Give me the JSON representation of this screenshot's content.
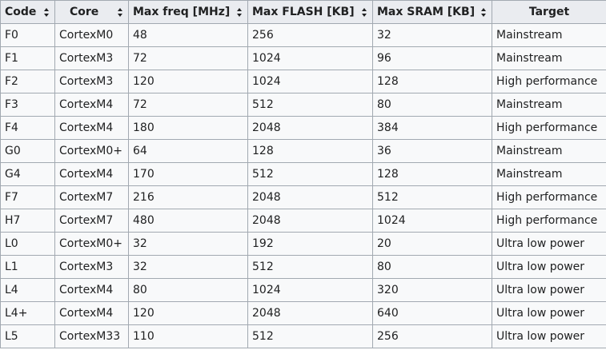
{
  "table": {
    "headers": [
      {
        "label": "Code",
        "sortable": true
      },
      {
        "label": "Core",
        "sortable": true
      },
      {
        "label": "Max freq [MHz]",
        "sortable": true
      },
      {
        "label": "Max FLASH [KB]",
        "sortable": true
      },
      {
        "label": "Max SRAM [KB]",
        "sortable": true
      },
      {
        "label": "Target",
        "sortable": false
      }
    ],
    "sort_icon": "sort-updown-icon",
    "rows": [
      [
        "F0",
        "CortexM0",
        "48",
        "256",
        "32",
        "Mainstream"
      ],
      [
        "F1",
        "CortexM3",
        "72",
        "1024",
        "96",
        "Mainstream"
      ],
      [
        "F2",
        "CortexM3",
        "120",
        "1024",
        "128",
        "High performance"
      ],
      [
        "F3",
        "CortexM4",
        "72",
        "512",
        "80",
        "Mainstream"
      ],
      [
        "F4",
        "CortexM4",
        "180",
        "2048",
        "384",
        "High performance"
      ],
      [
        "G0",
        "CortexM0+",
        "64",
        "128",
        "36",
        "Mainstream"
      ],
      [
        "G4",
        "CortexM4",
        "170",
        "512",
        "128",
        "Mainstream"
      ],
      [
        "F7",
        "CortexM7",
        "216",
        "2048",
        "512",
        "High performance"
      ],
      [
        "H7",
        "CortexM7",
        "480",
        "2048",
        "1024",
        "High performance"
      ],
      [
        "L0",
        "CortexM0+",
        "32",
        "192",
        "20",
        "Ultra low power"
      ],
      [
        "L1",
        "CortexM3",
        "32",
        "512",
        "80",
        "Ultra low power"
      ],
      [
        "L4",
        "CortexM4",
        "80",
        "1024",
        "320",
        "Ultra low power"
      ],
      [
        "L4+",
        "CortexM4",
        "120",
        "2048",
        "640",
        "Ultra low power"
      ],
      [
        "L5",
        "CortexM33",
        "110",
        "512",
        "256",
        "Ultra low power"
      ]
    ]
  },
  "colors": {
    "header_bg": "#eaecf0",
    "cell_bg": "#f8f9fa",
    "border": "#a2a9b1",
    "text": "#202122"
  }
}
